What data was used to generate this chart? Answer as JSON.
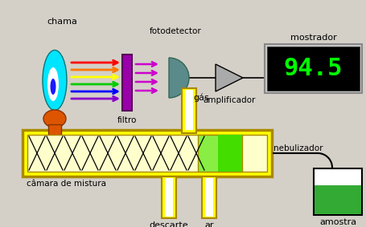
{
  "bg_color": "#d4d0c8",
  "labels": {
    "chama": "chama",
    "filtro": "filtro",
    "fotodetector": "fotodetector",
    "amplificador": "amplificador",
    "mostrador": "mostrador",
    "display_value": "94.5",
    "gas": "gás",
    "nebulizador": "nebulizador",
    "camara": "câmara de mistura",
    "descarte": "descarte",
    "ar": "ar",
    "amostra": "amostra"
  },
  "colors": {
    "flame_outer": "#00e5ff",
    "flame_inner": "white",
    "flame_blue": "#1a1aff",
    "burner": "#dd5500",
    "filter_color": "#9900aa",
    "detector_color": "#5b8a8a",
    "amplifier_color": "#888888",
    "display_bg": "#000000",
    "display_text": "#00ff00",
    "display_border": "#c0c0c0",
    "beam_colors": [
      "#ff0000",
      "#ff7700",
      "#ffff00",
      "#00cc00",
      "#0000ff",
      "#8800cc"
    ],
    "filtered_arrow": "#cc00cc",
    "pink_arrow": "#ff66bb",
    "yellow": "#ffff00",
    "yellow_border": "#aa8800",
    "chamber_fill": "#ffffcc",
    "green_neb": "#44dd00",
    "green_neb2": "#88ee44",
    "sample_fill": "#33aa33",
    "black": "#000000",
    "white": "#ffffff",
    "gray_amp": "#aaaaaa"
  }
}
